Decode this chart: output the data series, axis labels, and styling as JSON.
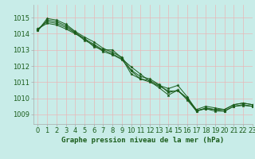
{
  "title": "Graphe pression niveau de la mer (hPa)",
  "background_color": "#c8ece8",
  "grid_color": "#e8b8b8",
  "line_color": "#1a5c1a",
  "spine_color": "#aaaaaa",
  "xlim": [
    -0.5,
    23
  ],
  "ylim": [
    1008.4,
    1015.8
  ],
  "xticks": [
    0,
    1,
    2,
    3,
    4,
    5,
    6,
    7,
    8,
    9,
    10,
    11,
    12,
    13,
    14,
    15,
    16,
    17,
    18,
    19,
    20,
    21,
    22,
    23
  ],
  "yticks": [
    1009,
    1010,
    1011,
    1012,
    1013,
    1014,
    1015
  ],
  "series": [
    [
      1014.2,
      1014.85,
      1014.75,
      1014.5,
      1014.1,
      1013.7,
      1013.35,
      1013.0,
      1012.75,
      1012.45,
      1011.95,
      1011.5,
      1011.05,
      1010.65,
      1010.2,
      1010.5,
      1009.9,
      1009.2,
      1009.35,
      1009.2,
      1009.2,
      1009.5,
      1009.6,
      1009.5
    ],
    [
      1014.2,
      1014.95,
      1014.85,
      1014.6,
      1014.15,
      1013.8,
      1013.5,
      1013.1,
      1012.85,
      1012.55,
      1011.75,
      1011.35,
      1011.2,
      1010.85,
      1010.35,
      1010.5,
      1010.0,
      1009.3,
      1009.5,
      1009.4,
      1009.3,
      1009.6,
      1009.7,
      1009.6
    ],
    [
      1014.3,
      1014.75,
      1014.65,
      1014.4,
      1014.05,
      1013.6,
      1013.3,
      1012.9,
      1012.7,
      1012.4,
      1011.7,
      1011.2,
      1011.0,
      1010.75,
      1010.45,
      1010.45,
      1010.0,
      1009.2,
      1009.4,
      1009.3,
      1009.2,
      1009.5,
      1009.55,
      1009.5
    ],
    [
      1014.3,
      1014.65,
      1014.55,
      1014.3,
      1014.0,
      1013.7,
      1013.2,
      1013.0,
      1013.0,
      1012.5,
      1011.5,
      1011.2,
      1011.1,
      1010.8,
      1010.6,
      1010.8,
      1010.1,
      1009.25,
      1009.35,
      1009.3,
      1009.3,
      1009.6,
      1009.7,
      1009.6
    ]
  ],
  "tick_fontsize": 6,
  "title_fontsize": 6.5,
  "tick_color": "#1a5c1a",
  "title_color": "#1a5c1a"
}
